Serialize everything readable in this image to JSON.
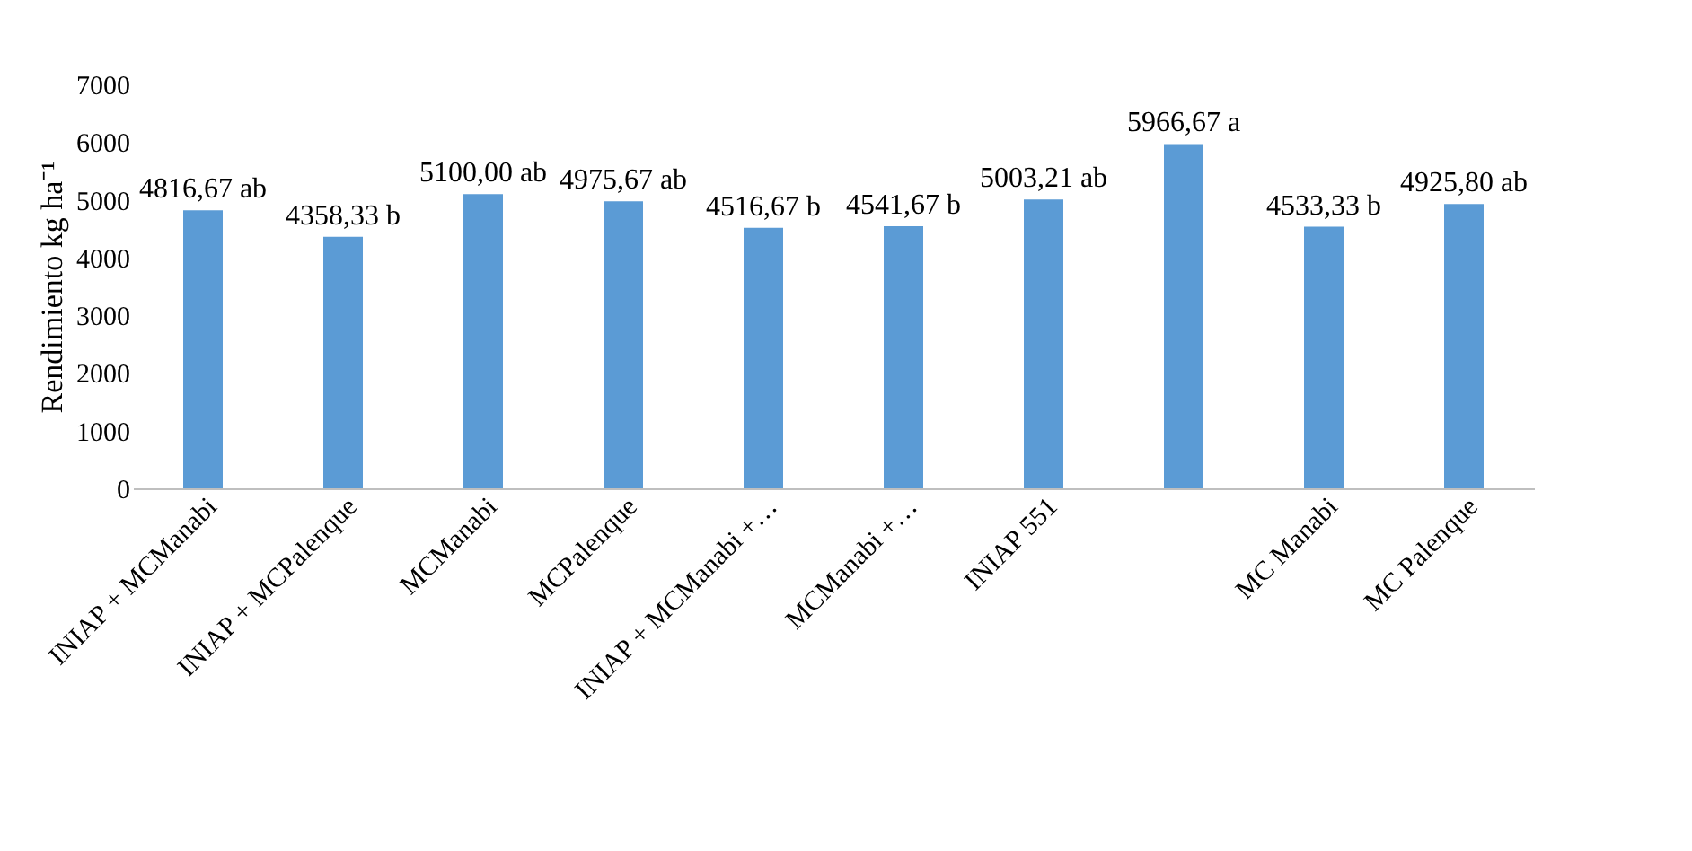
{
  "chart_data": {
    "type": "bar",
    "ylabel": "Rendimiento kg ha⁻¹",
    "categories": [
      "INIAP + MCManabi",
      "INIAP + MCPalenque",
      "MCManabi",
      "MCPalenque",
      "INIAP + MCManabi +…",
      "MCManabi +…",
      "INIAP 551",
      null,
      "MC Manabi",
      "MC Palenque"
    ],
    "values": [
      4816.67,
      4358.33,
      5100.0,
      4975.67,
      4516.67,
      4541.67,
      5003.21,
      5966.67,
      4533.33,
      4925.8
    ],
    "value_labels": [
      "4816,67 ab",
      "4358,33 b",
      "5100,00 ab",
      "4975,67 ab",
      "4516,67 b",
      "4541,67 b",
      "5003,21 ab",
      "5966,67 a",
      "4533,33 b",
      "4925,80 ab"
    ],
    "color": "#5b9bd5",
    "ylim": [
      0,
      7000
    ],
    "yticks": [
      0,
      1000,
      2000,
      3000,
      4000,
      5000,
      6000,
      7000
    ],
    "grid": false
  }
}
